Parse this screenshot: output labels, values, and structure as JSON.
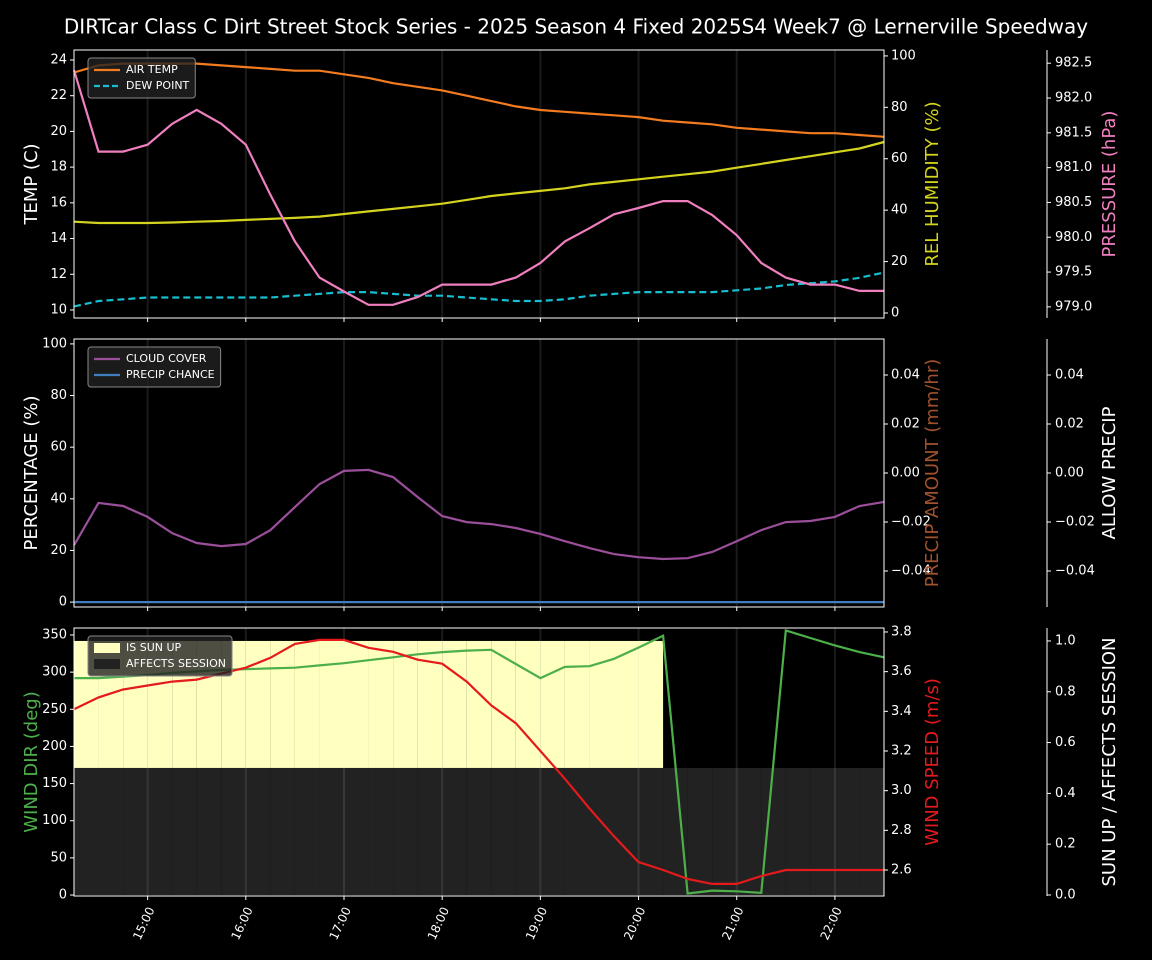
{
  "title": "DIRTcar Class C Dirt Street Stock Series - 2025 Season 4 Fixed 2025S4 Week7 @ Lernerville Speedway",
  "chart_data": [
    {
      "type": "line",
      "x": [
        "14:15",
        "14:30",
        "14:45",
        "15:00",
        "15:15",
        "15:30",
        "15:45",
        "16:00",
        "16:15",
        "16:30",
        "16:45",
        "17:00",
        "17:15",
        "17:30",
        "17:45",
        "18:00",
        "18:15",
        "18:30",
        "18:45",
        "19:00",
        "19:15",
        "19:30",
        "19:45",
        "20:00",
        "20:15",
        "20:30",
        "20:45",
        "21:00",
        "21:15",
        "21:30",
        "21:45",
        "22:00",
        "22:15",
        "22:30"
      ],
      "xlim": [
        "14:15",
        "22:30"
      ],
      "xticks": [
        "15:00",
        "16:00",
        "17:00",
        "18:00",
        "19:00",
        "20:00",
        "21:00",
        "22:00"
      ],
      "ylabel": "TEMP (C)",
      "ylabel_color": "#ffffff",
      "ylim": [
        9.55,
        24.56
      ],
      "yticks": [
        10,
        12,
        14,
        16,
        18,
        20,
        22,
        24
      ],
      "y2label": "REL HUMIDITY (%)",
      "y2label_color": "#d4d41f",
      "y2lim": [
        -1.95,
        102.3
      ],
      "y2ticks": [
        0,
        20,
        40,
        60,
        80,
        100
      ],
      "y3label": "PRESSURE (hPa)",
      "y3label_color": "#f07fbf",
      "y3lim": [
        978.84,
        982.69
      ],
      "y3ticks": [
        {
          "value": 979,
          "label": "979.0"
        },
        979.5,
        {
          "value": 980,
          "label": "980.0"
        },
        980.5,
        {
          "value": 981,
          "label": "981.0"
        },
        981.5,
        {
          "value": 982,
          "label": "982.0"
        },
        982.5
      ],
      "legend": "upper left",
      "grid": true,
      "series": [
        {
          "name": "AIR TEMP",
          "color": "#f47c20",
          "values": [
            23.3,
            23.7,
            23.8,
            23.8,
            23.8,
            23.8,
            23.7,
            23.6,
            23.5,
            23.4,
            23.4,
            23.2,
            23.0,
            22.7,
            22.5,
            22.3,
            22.0,
            21.7,
            21.4,
            21.2,
            21.1,
            21.0,
            20.9,
            20.8,
            20.6,
            20.5,
            20.4,
            20.2,
            20.1,
            20.0,
            19.9,
            19.9,
            19.8,
            19.7
          ]
        },
        {
          "name": "DEW POINT",
          "color": "#17becf",
          "dashed": true,
          "values": [
            10.2,
            10.5,
            10.6,
            10.7,
            10.7,
            10.7,
            10.7,
            10.7,
            10.7,
            10.8,
            10.9,
            11.0,
            11.0,
            10.9,
            10.8,
            10.8,
            10.7,
            10.6,
            10.5,
            10.5,
            10.6,
            10.8,
            10.9,
            11.0,
            11.0,
            11.0,
            11.0,
            11.1,
            11.2,
            11.4,
            11.5,
            11.6,
            11.8,
            12.1
          ]
        },
        {
          "color": "#d4d41f",
          "axis": "y2",
          "values": [
            35.5,
            35,
            35,
            35,
            35.2,
            35.5,
            35.8,
            36.2,
            36.6,
            37,
            37.5,
            38.5,
            39.5,
            40.5,
            41.5,
            42.5,
            44,
            45.5,
            46.5,
            47.5,
            48.5,
            50,
            51,
            52,
            53,
            54,
            55,
            56.5,
            58,
            59.5,
            61,
            62.5,
            64,
            66.5
          ]
        },
        {
          "color": "#f07fbf",
          "axis": "y3",
          "values": [
            982.4,
            981.23,
            981.23,
            981.33,
            981.63,
            981.83,
            981.63,
            981.33,
            980.61,
            979.94,
            979.42,
            979.22,
            979.03,
            979.03,
            979.14,
            979.32,
            979.32,
            979.32,
            979.42,
            979.63,
            979.94,
            980.13,
            980.33,
            980.42,
            980.52,
            980.52,
            980.32,
            980.03,
            979.63,
            979.42,
            979.32,
            979.32,
            979.23,
            979.23
          ]
        }
      ]
    },
    {
      "type": "line",
      "x": [
        "14:15",
        "14:30",
        "14:45",
        "15:00",
        "15:15",
        "15:30",
        "15:45",
        "16:00",
        "16:15",
        "16:30",
        "16:45",
        "17:00",
        "17:15",
        "17:30",
        "17:45",
        "18:00",
        "18:15",
        "18:30",
        "18:45",
        "19:00",
        "19:15",
        "19:30",
        "19:45",
        "20:00",
        "20:15",
        "20:30",
        "20:45",
        "21:00",
        "21:15",
        "21:30",
        "21:45",
        "22:00",
        "22:15",
        "22:30"
      ],
      "xlim": [
        "14:15",
        "22:30"
      ],
      "xticks": [
        "15:00",
        "16:00",
        "17:00",
        "18:00",
        "19:00",
        "20:00",
        "21:00",
        "22:00"
      ],
      "ylabel": "PERCENTAGE (%)",
      "ylabel_color": "#ffffff",
      "ylim": [
        -1.9,
        101.9
      ],
      "yticks": [
        0,
        20,
        40,
        60,
        80,
        100
      ],
      "y2label": "PRECIP AMOUNT (mm/hr)",
      "y2label_color": "#a0522d",
      "y2lim": [
        -0.0547,
        0.0547
      ],
      "y2ticks": [
        {
          "value": -0.04,
          "label": "−0.04"
        },
        {
          "value": -0.02,
          "label": "−0.02"
        },
        {
          "value": 0,
          "label": "0.00"
        },
        {
          "value": 0.02,
          "label": "0.02"
        },
        {
          "value": 0.04,
          "label": "0.04"
        }
      ],
      "y3label": "ALLOW PRECIP",
      "y3label_color": "#ffffff",
      "y3lim": [
        -0.0547,
        0.0547
      ],
      "y3ticks": [
        {
          "value": -0.04,
          "label": "−0.04"
        },
        {
          "value": -0.02,
          "label": "−0.02"
        },
        {
          "value": 0,
          "label": "0.00"
        },
        {
          "value": 0.02,
          "label": "0.02"
        },
        {
          "value": 0.04,
          "label": "0.04"
        }
      ],
      "legend": "upper left",
      "grid": true,
      "series": [
        {
          "name": "CLOUD COVER",
          "color": "#9b4f9b",
          "values": [
            22,
            38.4,
            37.2,
            33,
            26.7,
            22.9,
            21.7,
            22.5,
            27.9,
            36.8,
            45.7,
            50.8,
            51.2,
            48.4,
            40.7,
            33.3,
            31,
            30.2,
            28.7,
            26.4,
            23.6,
            20.9,
            18.6,
            17.4,
            16.7,
            17,
            19.4,
            23.6,
            27.9,
            31,
            31.4,
            33,
            37.2,
            38.8
          ]
        },
        {
          "name": "PRECIP CHANCE",
          "color": "#3f7fbf",
          "values": [
            0,
            0,
            0,
            0,
            0,
            0,
            0,
            0,
            0,
            0,
            0,
            0,
            0,
            0,
            0,
            0,
            0,
            0,
            0,
            0,
            0,
            0,
            0,
            0,
            0,
            0,
            0,
            0,
            0,
            0,
            0,
            0,
            0,
            0
          ]
        }
      ]
    },
    {
      "type": "line",
      "x": [
        "14:15",
        "14:30",
        "14:45",
        "15:00",
        "15:15",
        "15:30",
        "15:45",
        "16:00",
        "16:15",
        "16:30",
        "16:45",
        "17:00",
        "17:15",
        "17:30",
        "17:45",
        "18:00",
        "18:15",
        "18:30",
        "18:45",
        "19:00",
        "19:15",
        "19:30",
        "19:45",
        "20:00",
        "20:15",
        "20:30",
        "20:45",
        "21:00",
        "21:15",
        "21:30",
        "21:45",
        "22:00",
        "22:15",
        "22:30"
      ],
      "xlim": [
        "14:15",
        "22:30"
      ],
      "xticks": [
        "15:00",
        "16:00",
        "17:00",
        "18:00",
        "19:00",
        "20:00",
        "21:00",
        "22:00"
      ],
      "ylabel": "WIND DIR (deg)",
      "ylabel_color": "#4daf4a",
      "ylim": [
        -1.3,
        359.4
      ],
      "yticks": [
        0,
        50,
        100,
        150,
        200,
        250,
        300,
        350
      ],
      "y2label": "WIND SPEED (m/s)",
      "y2label_color": "#e41a1c",
      "y2lim": [
        2.469,
        3.82
      ],
      "y2ticks": [
        2.6,
        2.8,
        {
          "value": 3,
          "label": "3.0"
        },
        3.2,
        3.4,
        3.6,
        3.8
      ],
      "y3label": "SUN UP / AFFECTS SESSION",
      "y3label_color": "#ffffff",
      "y3lim": [
        -0.004,
        1.051
      ],
      "y3ticks": [
        {
          "value": 0,
          "label": "0.0"
        },
        0.2,
        0.4,
        0.6,
        0.8,
        {
          "value": 1,
          "label": "1.0"
        }
      ],
      "legend": "upper left",
      "grid": true,
      "series": [
        {
          "name": "IS SUN UP",
          "color": "#ffffc0",
          "axis": "y3",
          "area": true,
          "values": [
            1,
            1,
            1,
            1,
            1,
            1,
            1,
            1,
            1,
            1,
            1,
            1,
            1,
            1,
            1,
            1,
            1,
            1,
            1,
            1,
            1,
            1,
            1,
            1,
            0,
            0,
            0,
            0,
            0,
            0,
            0,
            0,
            0,
            0
          ]
        },
        {
          "name": "AFFECTS SESSION",
          "color": "#222222",
          "axis": "y3",
          "area": true,
          "values": [
            0.5,
            0.5,
            0.5,
            0.5,
            0.5,
            0.5,
            0.5,
            0.5,
            0.5,
            0.5,
            0.5,
            0.5,
            0.5,
            0.5,
            0.5,
            0.5,
            0.5,
            0.5,
            0.5,
            0.5,
            0.5,
            0.5,
            0.5,
            0.5,
            0.5,
            0.5,
            0.5,
            0.5,
            0.5,
            0.5,
            0.5,
            0.5,
            0.5,
            0.5
          ]
        },
        {
          "color": "#4daf4a",
          "values": [
            292,
            292,
            294,
            296,
            299,
            301,
            303,
            304,
            305,
            306,
            309,
            312,
            316,
            320,
            324,
            327,
            329,
            330,
            311,
            292,
            307,
            308,
            318,
            333,
            349,
            2,
            6,
            5,
            3,
            356,
            346,
            336,
            327,
            320
          ]
        },
        {
          "color": "#e41a1c",
          "axis": "y2",
          "values": [
            3.41,
            3.47,
            3.51,
            3.53,
            3.55,
            3.56,
            3.59,
            3.62,
            3.67,
            3.74,
            3.76,
            3.76,
            3.72,
            3.7,
            3.66,
            3.64,
            3.55,
            3.43,
            3.34,
            3.2,
            3.06,
            2.91,
            2.77,
            2.64,
            2.6,
            2.555,
            2.53,
            2.53,
            2.57,
            2.6,
            2.6,
            2.6,
            2.6,
            2.6
          ]
        }
      ]
    }
  ]
}
